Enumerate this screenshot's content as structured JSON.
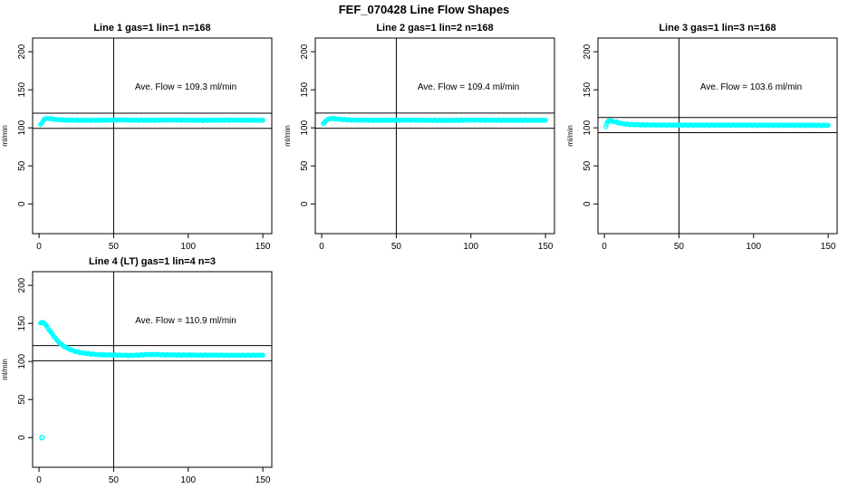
{
  "page_title": "FEF_070428  Line Flow Shapes",
  "colors": {
    "data_point": "#00FFFF",
    "axis": "#000000",
    "background": "#FFFFFF",
    "text": "#000000"
  },
  "chart_data": [
    {
      "type": "scatter",
      "title": "Line 1 gas=1 lin=1 n=168",
      "annotation": "Ave. Flow =  109.3  ml/min",
      "ave_flow_ml_min": 109.3,
      "n": 168,
      "xlabel": "",
      "ylabel": "ml/min",
      "xticks": [
        0,
        50,
        100,
        150
      ],
      "yticks": [
        0,
        50,
        100,
        150,
        200
      ],
      "xlim": [
        -4.3,
        156
      ],
      "ylim": [
        -39,
        218
      ],
      "grid": false,
      "vline_x": 50,
      "hlines": [
        119.3,
        99.3
      ],
      "series": [
        {
          "name": "flow",
          "points": [
            [
              1,
              104
            ],
            [
              2,
              107
            ],
            [
              3,
              110
            ],
            [
              4,
              112
            ],
            [
              6,
              112.5
            ],
            [
              8,
              112
            ],
            [
              11,
              111
            ],
            [
              15,
              110.5
            ],
            [
              25,
              110
            ],
            [
              40,
              110
            ],
            [
              55,
              110.4
            ],
            [
              70,
              110
            ],
            [
              90,
              110.3
            ],
            [
              110,
              110
            ],
            [
              130,
              110.2
            ],
            [
              150,
              110
            ]
          ]
        }
      ],
      "outliers": []
    },
    {
      "type": "scatter",
      "title": "Line 2 gas=1 lin=2 n=168",
      "annotation": "Ave. Flow =  109.4  ml/min",
      "ave_flow_ml_min": 109.4,
      "n": 168,
      "xlabel": "",
      "ylabel": "ml/min",
      "xticks": [
        0,
        50,
        100,
        150
      ],
      "yticks": [
        0,
        50,
        100,
        150,
        200
      ],
      "xlim": [
        -4.3,
        156
      ],
      "ylim": [
        -39,
        218
      ],
      "grid": false,
      "vline_x": 50,
      "hlines": [
        119.4,
        99.4
      ],
      "series": [
        {
          "name": "flow",
          "points": [
            [
              1,
              105
            ],
            [
              2,
              108
            ],
            [
              4,
              111
            ],
            [
              6,
              112.3
            ],
            [
              9,
              112
            ],
            [
              13,
              111
            ],
            [
              20,
              110.3
            ],
            [
              35,
              110
            ],
            [
              60,
              110.2
            ],
            [
              80,
              109.8
            ],
            [
              100,
              110.2
            ],
            [
              120,
              110
            ],
            [
              150,
              110
            ]
          ]
        }
      ],
      "outliers": []
    },
    {
      "type": "scatter",
      "title": "Line 3 gas=1 lin=3 n=168",
      "annotation": "Ave. Flow =  103.6  ml/min",
      "ave_flow_ml_min": 103.6,
      "n": 168,
      "xlabel": "",
      "ylabel": "ml/min",
      "xticks": [
        0,
        50,
        100,
        150
      ],
      "yticks": [
        0,
        50,
        100,
        150,
        200
      ],
      "xlim": [
        -4.3,
        156
      ],
      "ylim": [
        -39,
        218
      ],
      "grid": false,
      "vline_x": 50,
      "hlines": [
        113.6,
        93.6
      ],
      "series": [
        {
          "name": "flow",
          "points": [
            [
              1,
              101
            ],
            [
              1.5,
              105
            ],
            [
              2,
              108
            ],
            [
              3,
              109.5
            ],
            [
              5,
              109
            ],
            [
              8,
              107.5
            ],
            [
              12,
              105.5
            ],
            [
              18,
              104.3
            ],
            [
              30,
              103.8
            ],
            [
              50,
              103.6
            ],
            [
              80,
              103.6
            ],
            [
              110,
              103.5
            ],
            [
              150,
              103.4
            ]
          ]
        }
      ],
      "outliers": []
    },
    {
      "type": "scatter",
      "title": "Line 4 (LT) gas=1 lin=4 n=3",
      "annotation": "Ave. Flow =  110.9  ml/min",
      "ave_flow_ml_min": 110.9,
      "n": 3,
      "xlabel": "",
      "ylabel": "ml/min",
      "xticks": [
        0,
        50,
        100,
        150
      ],
      "yticks": [
        0,
        50,
        100,
        150,
        200
      ],
      "xlim": [
        -4.3,
        156
      ],
      "ylim": [
        -39,
        218
      ],
      "grid": false,
      "vline_x": 50,
      "hlines": [
        120.9,
        100.9
      ],
      "series": [
        {
          "name": "flow",
          "points": [
            [
              1,
              150
            ],
            [
              2,
              152
            ],
            [
              3,
              151
            ],
            [
              4,
              149
            ],
            [
              5,
              147
            ],
            [
              6,
              144
            ],
            [
              7,
              141
            ],
            [
              8,
              138
            ],
            [
              9,
              136
            ],
            [
              10,
              133
            ],
            [
              12,
              128
            ],
            [
              14,
              124
            ],
            [
              16,
              121
            ],
            [
              18,
              118.5
            ],
            [
              20,
              116.5
            ],
            [
              23,
              114
            ],
            [
              26,
              112.5
            ],
            [
              30,
              111
            ],
            [
              35,
              109.8
            ],
            [
              40,
              109
            ],
            [
              45,
              108.7
            ],
            [
              50,
              108.5
            ],
            [
              55,
              108.2
            ],
            [
              60,
              108
            ],
            [
              65,
              108.2
            ],
            [
              70,
              108.8
            ],
            [
              75,
              109.2
            ],
            [
              80,
              109
            ],
            [
              85,
              108.8
            ],
            [
              90,
              108.6
            ],
            [
              95,
              108.5
            ],
            [
              100,
              108.6
            ],
            [
              105,
              108.4
            ],
            [
              110,
              108.3
            ],
            [
              115,
              108.4
            ],
            [
              120,
              108.3
            ],
            [
              125,
              108.2
            ],
            [
              130,
              108.2
            ],
            [
              135,
              108.1
            ],
            [
              140,
              108.2
            ],
            [
              145,
              108.2
            ],
            [
              150,
              108.3
            ]
          ]
        }
      ],
      "outliers": [
        [
          2,
          0
        ]
      ]
    }
  ]
}
